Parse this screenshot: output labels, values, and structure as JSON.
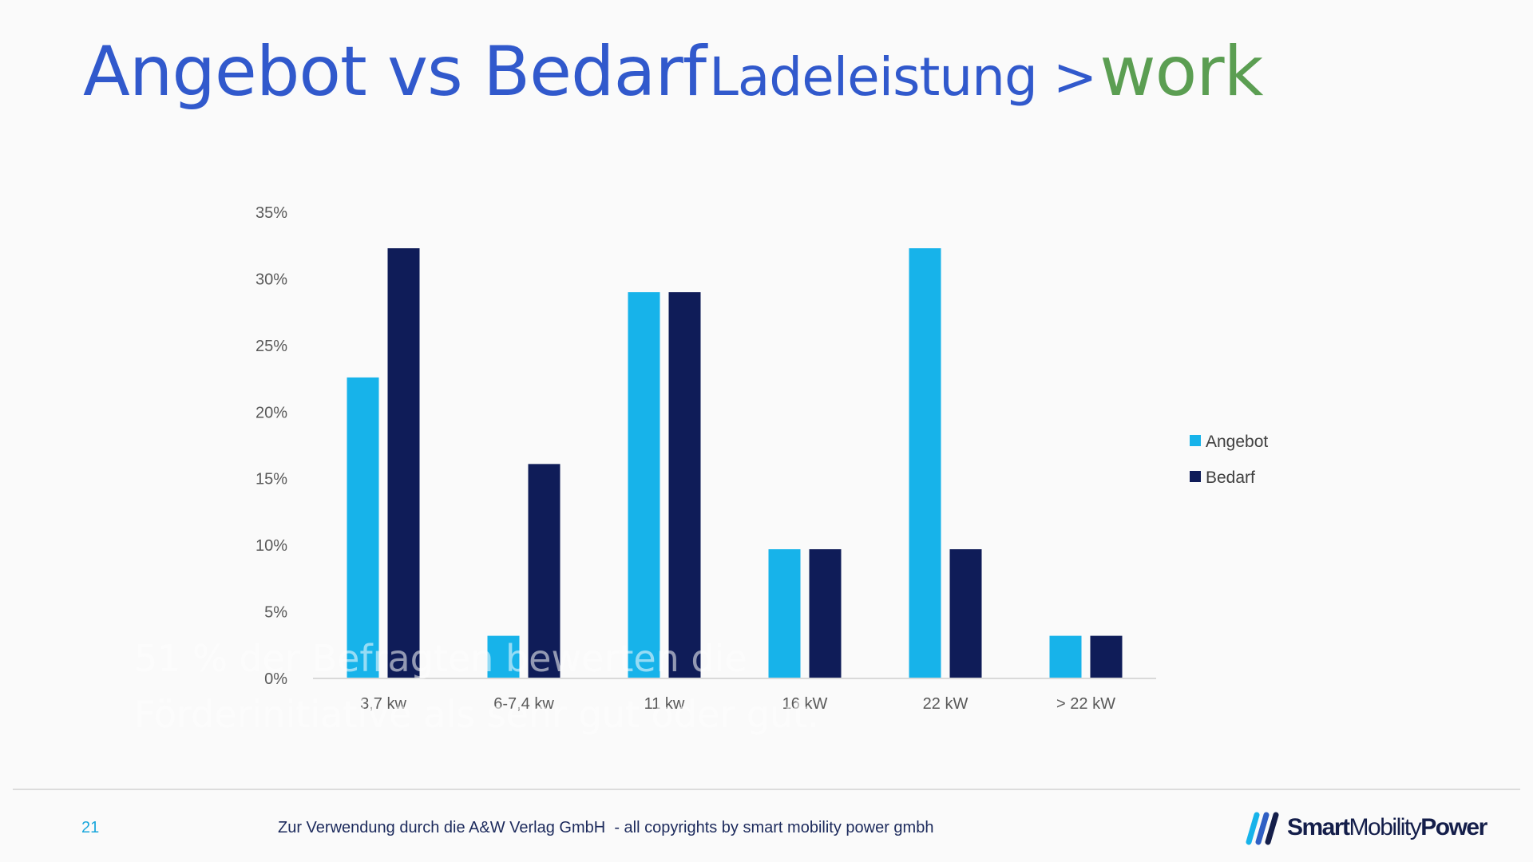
{
  "title": {
    "main": "Angebot vs Bedarf",
    "sub": "Ladeleistung >",
    "accent": "work"
  },
  "overlay_text": {
    "line1": "51 % der Befragten bewerten die",
    "line2": "Förderinitiative als sehr gut oder gut."
  },
  "footer": {
    "page_number": "21",
    "note": "Zur Verwendung durch die A&W Verlag GmbH  - all copyrights by smart mobility power gmbh"
  },
  "logo": {
    "word1": "Smart",
    "word2": "Mobility",
    "word3": "Power",
    "icon": "logo-mark-icon"
  },
  "colors": {
    "title_blue": "#3159cc",
    "accent_green": "#5b9e52",
    "angebot": "#17b3ea",
    "bedarf": "#0f1c58"
  },
  "chart_data": {
    "type": "bar",
    "categories": [
      "3,7 kw",
      "6-7,4 kw",
      "11 kw",
      "16 kW",
      "22 kW",
      "> 22 kW"
    ],
    "series": [
      {
        "name": "Angebot",
        "values": [
          22.6,
          3.2,
          29.0,
          9.7,
          32.3,
          3.2
        ]
      },
      {
        "name": "Bedarf",
        "values": [
          32.3,
          16.1,
          29.0,
          9.7,
          9.7,
          3.2
        ]
      }
    ],
    "ylim": [
      0,
      35
    ],
    "yticks": [
      "0%",
      "5%",
      "10%",
      "15%",
      "20%",
      "25%",
      "30%",
      "35%"
    ],
    "ytick_values": [
      0,
      5,
      10,
      15,
      20,
      25,
      30,
      35
    ],
    "legend": "right",
    "grid": false
  }
}
